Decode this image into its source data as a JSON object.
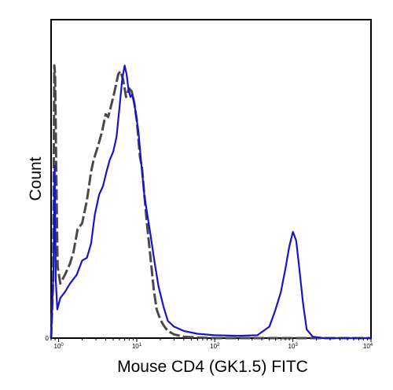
{
  "chart_data": {
    "type": "line",
    "title": "",
    "xlabel": "Mouse CD4 (GK1.5) FITC",
    "ylabel": "Count",
    "x_scale": "log",
    "xlim": [
      0.8,
      10000
    ],
    "ylim": [
      0,
      100
    ],
    "grid": false,
    "legend": "none",
    "x_ticks": [
      {
        "base": "10",
        "exp": "0",
        "value": 1
      },
      {
        "base": "10",
        "exp": "1",
        "value": 10
      },
      {
        "base": "10",
        "exp": "2",
        "value": 100
      },
      {
        "base": "10",
        "exp": "3",
        "value": 1000
      },
      {
        "base": "10",
        "exp": "4",
        "value": 10000
      }
    ],
    "y_ticks": [
      {
        "label": "0",
        "value": 0
      }
    ],
    "series": [
      {
        "style": "dashed",
        "color": "#4a4a4a",
        "x": [
          0.8,
          0.85,
          0.88,
          0.9,
          0.93,
          0.97,
          1.05,
          1.2,
          1.4,
          1.55,
          1.75,
          2.0,
          2.3,
          2.6,
          2.8,
          3.2,
          3.6,
          4.0,
          4.3,
          4.6,
          5.2,
          5.8,
          6.2,
          6.7,
          7.3,
          8.0,
          8.6,
          9.3,
          10.0,
          11.0,
          11.6,
          12.5,
          13.5,
          15.0,
          16.5,
          18.0,
          20.0,
          22.0,
          25.0,
          30.0,
          40.0,
          60.0,
          100.0,
          10000.0
        ],
        "y": [
          0,
          20,
          95,
          92,
          60,
          25,
          19,
          22,
          26,
          30,
          38,
          40,
          48,
          58,
          62,
          67,
          72,
          78,
          77,
          80,
          86,
          92,
          93,
          90,
          84,
          87,
          86,
          82,
          76,
          63,
          60,
          50,
          40,
          28,
          17,
          10,
          6.5,
          4.5,
          2.5,
          1.3,
          0.5,
          0.2,
          0,
          0
        ]
      },
      {
        "style": "solid",
        "color": "#1a14c8",
        "x": [
          0.8,
          0.86,
          0.89,
          0.92,
          0.96,
          1.05,
          1.2,
          1.4,
          1.7,
          2.0,
          2.3,
          2.6,
          2.9,
          3.3,
          3.7,
          4.1,
          4.5,
          5.0,
          5.5,
          6.0,
          6.5,
          7.0,
          7.4,
          7.8,
          8.3,
          8.8,
          9.5,
          10.5,
          11.5,
          12.5,
          13.5,
          15.0,
          17.0,
          19.0,
          22.0,
          25.0,
          30.0,
          40.0,
          60.0,
          100.0,
          200.0,
          350.0,
          500.0,
          600.0,
          700.0,
          800.0,
          900.0,
          1000.0,
          1100.0,
          1200.0,
          1350.0,
          1500.0,
          1800.0,
          2500.0,
          10000.0
        ],
        "y": [
          0,
          24,
          60,
          20,
          10,
          14,
          16,
          19,
          22,
          27,
          28,
          33,
          43,
          50,
          53,
          58,
          62,
          65,
          70,
          80,
          90,
          95,
          92,
          87,
          84,
          85,
          80,
          72,
          60,
          50,
          44,
          36,
          26,
          18,
          11,
          6,
          4,
          2.5,
          1.5,
          1.0,
          0.8,
          1.0,
          4,
          10,
          16,
          24,
          32,
          37,
          34,
          25,
          12,
          3,
          0.5,
          0,
          0
        ]
      }
    ]
  }
}
